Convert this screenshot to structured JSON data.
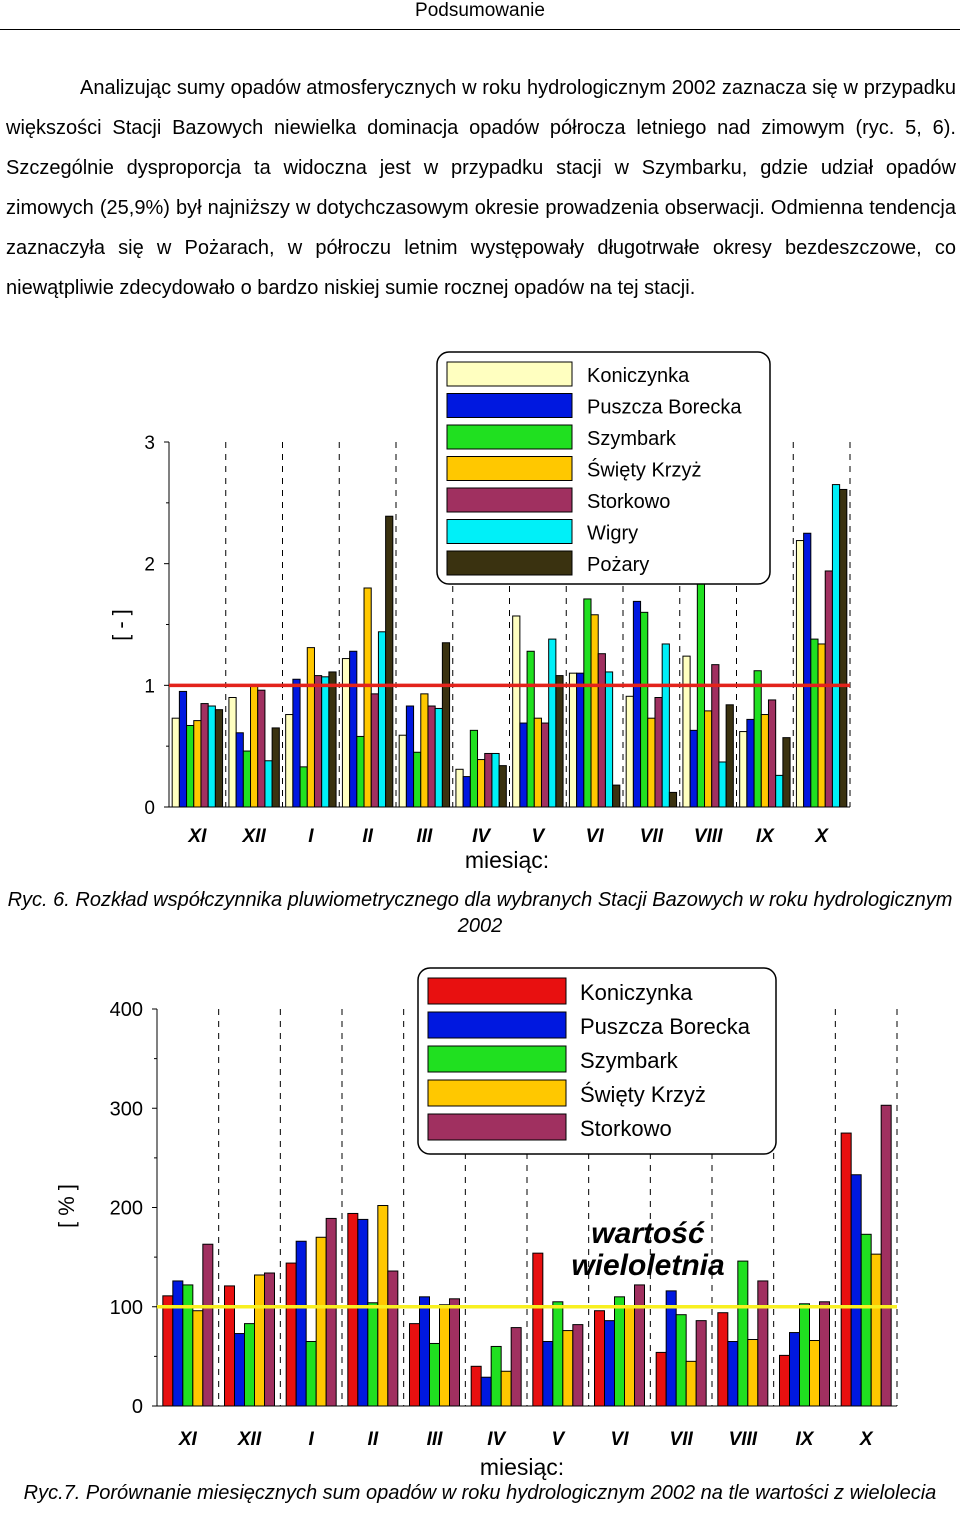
{
  "header": {
    "title": "Podsumowanie"
  },
  "paragraph": "Analizując sumy opadów atmosferycznych w roku hydrologicznym 2002 zaznacza się w przypadku większości Stacji Bazowych niewielka dominacja opadów półrocza letniego nad zimowym (ryc. 5, 6). Szczególnie dysproporcja ta widoczna jest w przypadku stacji w Szymbarku, gdzie udział opadów zimowych (25,9%) był najniższy w dotychczasowym okresie prowadzenia obserwacji. Odmienna tendencja zaznaczyła się w Pożarach, w półroczu letnim występowały długotrwałe okresy bezdeszczowe, co niewątpliwie zdecydowało o bardzo niskiej sumie rocznej opadów na tej stacji.",
  "captions": {
    "fig6": "Ryc. 6. Rozkład współczynnika pluwiometrycznego dla wybranych Stacji Bazowych w roku hydrologicznym 2002",
    "fig7": "Ryc.7. Porównanie miesięcznych sum opadów w roku hydrologicznym 2002 na tle wartości z wielolecia"
  },
  "chart_data": [
    {
      "type": "bar",
      "title": "",
      "xlabel": "miesiąc:",
      "ylabel": "[ - ]",
      "ylim": [
        0,
        3
      ],
      "yticks": [
        "0",
        "1",
        "2",
        "3"
      ],
      "grid": "vertical dashed",
      "legend_position": "top-right",
      "reference_line": {
        "value": 1,
        "color": "#e3231b"
      },
      "categories": [
        "XI",
        "XII",
        "I",
        "II",
        "III",
        "IV",
        "V",
        "VI",
        "VII",
        "VIII",
        "IX",
        "X"
      ],
      "series": [
        {
          "name": "Koniczynka",
          "color": "#ffffc0",
          "values": [
            0.73,
            0.9,
            0.76,
            1.22,
            0.59,
            0.31,
            1.57,
            1.1,
            0.91,
            1.24,
            0.62,
            2.19
          ]
        },
        {
          "name": "Puszcza Borecka",
          "color": "#0018e0",
          "values": [
            0.95,
            0.61,
            1.05,
            1.28,
            0.83,
            0.25,
            0.69,
            1.1,
            1.69,
            0.63,
            0.72,
            2.25
          ]
        },
        {
          "name": "Szymbark",
          "color": "#20e020",
          "values": [
            0.67,
            0.46,
            0.33,
            0.58,
            0.45,
            0.63,
            1.28,
            1.71,
            1.6,
            2.1,
            1.12,
            1.38
          ]
        },
        {
          "name": "Święty Krzyż",
          "color": "#ffc800",
          "values": [
            0.71,
            1.0,
            1.31,
            1.8,
            0.93,
            0.39,
            0.73,
            1.58,
            0.73,
            0.79,
            0.76,
            1.34
          ]
        },
        {
          "name": "Storkowo",
          "color": "#a03060",
          "values": [
            0.85,
            0.96,
            1.08,
            0.93,
            0.83,
            0.44,
            0.69,
            1.26,
            0.9,
            1.17,
            0.88,
            1.94
          ]
        },
        {
          "name": "Wigry",
          "color": "#00f0f8",
          "values": [
            0.83,
            0.38,
            1.07,
            1.44,
            0.81,
            0.44,
            1.38,
            1.11,
            1.34,
            0.37,
            0.26,
            2.65
          ]
        },
        {
          "name": "Pożary",
          "color": "#3a3210",
          "values": [
            0.8,
            0.65,
            1.11,
            2.39,
            1.35,
            0.34,
            1.08,
            0.18,
            0.12,
            0.84,
            0.57,
            2.61
          ]
        }
      ]
    },
    {
      "type": "bar",
      "title": "",
      "xlabel": "miesiąc:",
      "ylabel": "[ % ]",
      "ylim": [
        0,
        400
      ],
      "yticks": [
        "0",
        "100",
        "200",
        "300",
        "400"
      ],
      "grid": "vertical dashed",
      "legend_position": "top-right",
      "reference_line": {
        "value": 100,
        "color": "#f8f020",
        "label": "wartość wieloletnia"
      },
      "categories": [
        "XI",
        "XII",
        "I",
        "II",
        "III",
        "IV",
        "V",
        "VI",
        "VII",
        "VIII",
        "IX",
        "X"
      ],
      "series": [
        {
          "name": "Koniczynka",
          "color": "#e81010",
          "values": [
            111,
            121,
            144,
            194,
            83,
            40,
            154,
            96,
            54,
            94,
            51,
            275
          ]
        },
        {
          "name": "Puszcza Borecka",
          "color": "#0018e0",
          "values": [
            126,
            73,
            166,
            188,
            110,
            29,
            65,
            86,
            116,
            65,
            74,
            233
          ]
        },
        {
          "name": "Szymbark",
          "color": "#20e020",
          "values": [
            122,
            83,
            65,
            104,
            63,
            60,
            105,
            110,
            92,
            146,
            103,
            173
          ]
        },
        {
          "name": "Święty Krzyż",
          "color": "#ffc800",
          "values": [
            96,
            132,
            170,
            202,
            102,
            35,
            76,
            100,
            45,
            67,
            66,
            153
          ]
        },
        {
          "name": "Storkowo",
          "color": "#a03060",
          "values": [
            163,
            134,
            189,
            136,
            108,
            79,
            82,
            122,
            86,
            126,
            105,
            303
          ]
        }
      ]
    }
  ]
}
